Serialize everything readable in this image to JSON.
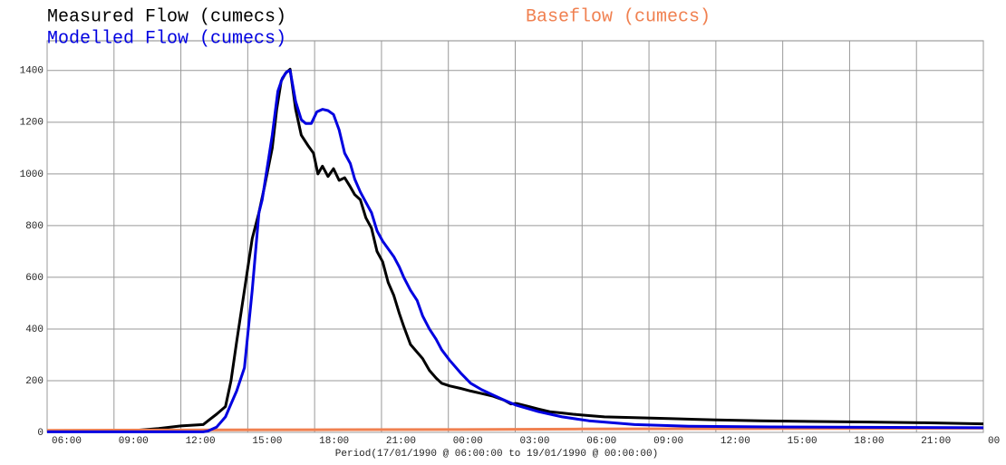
{
  "chart_data": {
    "type": "line",
    "xlabel": "Period(17/01/1990 @ 06:00:00 to 19/01/1990 @ 00:00:00)",
    "xlim": [
      0,
      42
    ],
    "xticks": [
      {
        "value": 0,
        "label": "06:00"
      },
      {
        "value": 3,
        "label": "09:00"
      },
      {
        "value": 6,
        "label": "12:00"
      },
      {
        "value": 9,
        "label": "15:00"
      },
      {
        "value": 12,
        "label": "18:00"
      },
      {
        "value": 15,
        "label": "21:00"
      },
      {
        "value": 18,
        "label": "00:00"
      },
      {
        "value": 21,
        "label": "03:00"
      },
      {
        "value": 24,
        "label": "06:00"
      },
      {
        "value": 27,
        "label": "09:00"
      },
      {
        "value": 30,
        "label": "12:00"
      },
      {
        "value": 33,
        "label": "15:00"
      },
      {
        "value": 36,
        "label": "18:00"
      },
      {
        "value": 39,
        "label": "21:00"
      },
      {
        "value": 42,
        "label": "00"
      }
    ],
    "ylim": [
      0,
      1515
    ],
    "yticks": [
      0,
      200,
      400,
      600,
      800,
      1000,
      1200,
      1400
    ],
    "grid": true,
    "series": [
      {
        "name": "Measured Flow (cumecs)",
        "color": "#000000",
        "x": [
          0,
          4,
          5,
          6,
          7,
          7.3,
          7.6,
          8,
          8.25,
          8.5,
          8.85,
          9.2,
          9.5,
          9.75,
          10.1,
          10.3,
          10.5,
          10.7,
          10.9,
          11.15,
          11.4,
          11.7,
          11.95,
          12.15,
          12.35,
          12.6,
          12.85,
          13.1,
          13.35,
          13.6,
          13.8,
          14.05,
          14.3,
          14.55,
          14.8,
          15.05,
          15.3,
          15.55,
          15.8,
          16,
          16.3,
          16.6,
          16.85,
          17.15,
          17.45,
          17.7,
          18.05,
          18.55,
          19,
          19.5,
          20,
          20.5,
          20.8,
          21.05,
          21.6,
          22.05,
          22.55,
          23.1,
          23.6,
          24.3,
          25,
          26.35,
          28.05,
          30,
          32,
          34.5,
          36.9,
          39.35,
          42
        ],
        "values": [
          5,
          8,
          15,
          25,
          30,
          50,
          70,
          100,
          200,
          350,
          550,
          750,
          850,
          950,
          1100,
          1250,
          1360,
          1390,
          1405,
          1250,
          1150,
          1110,
          1080,
          1000,
          1030,
          990,
          1020,
          975,
          985,
          950,
          920,
          900,
          830,
          790,
          700,
          660,
          580,
          530,
          460,
          410,
          340,
          310,
          285,
          240,
          210,
          190,
          180,
          170,
          160,
          150,
          140,
          125,
          110,
          112,
          100,
          90,
          80,
          75,
          70,
          65,
          60,
          57,
          53,
          48,
          45,
          42,
          40,
          37,
          33
        ]
      },
      {
        "name": "Baseflow (cumecs)",
        "color": "#f08050",
        "x": [
          0,
          6,
          12,
          18,
          24,
          30,
          36,
          42
        ],
        "values": [
          8,
          9,
          10,
          11,
          13,
          14,
          15,
          16
        ]
      },
      {
        "name": "Modelled Flow (cumecs)",
        "color": "#0000e0",
        "x": [
          0,
          7,
          7.2,
          7.6,
          8,
          8.25,
          8.5,
          8.85,
          9.2,
          9.5,
          9.65,
          10.1,
          10.35,
          10.55,
          10.75,
          10.9,
          11.15,
          11.4,
          11.6,
          11.85,
          12.1,
          12.35,
          12.6,
          12.85,
          13.1,
          13.35,
          13.6,
          13.8,
          14.05,
          14.3,
          14.55,
          14.8,
          15.05,
          15.3,
          15.55,
          15.8,
          16,
          16.3,
          16.6,
          16.85,
          17.15,
          17.45,
          17.7,
          18.05,
          18.55,
          19,
          19.5,
          20,
          20.5,
          21.05,
          22.05,
          23.1,
          24.3,
          26.35,
          28.8,
          32.45,
          42
        ],
        "values": [
          2,
          2,
          5,
          20,
          60,
          110,
          160,
          250,
          550,
          850,
          900,
          1150,
          1320,
          1370,
          1395,
          1400,
          1280,
          1210,
          1195,
          1195,
          1240,
          1250,
          1245,
          1230,
          1170,
          1080,
          1040,
          980,
          930,
          890,
          850,
          780,
          740,
          710,
          680,
          640,
          600,
          550,
          510,
          450,
          400,
          360,
          320,
          280,
          230,
          190,
          165,
          145,
          125,
          105,
          80,
          60,
          45,
          30,
          24,
          21,
          18
        ]
      }
    ]
  }
}
